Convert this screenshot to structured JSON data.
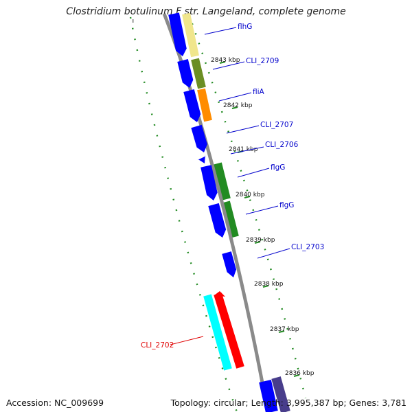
{
  "title": "Clostridium botulinum F str. Langeland, complete genome",
  "footer": {
    "accession": "Accession: NC_009699",
    "summary": "Topology: circular; Length: 3,995,387 bp; Genes: 3,781"
  },
  "colors": {
    "backbone": "#8a8a8a",
    "forward_gene": "#0000ff",
    "tick": "#228b22",
    "label_blue": "#0000cc",
    "label_red": "#e00000"
  },
  "ticks": [
    {
      "label": "2843 kbp"
    },
    {
      "label": "2842 kbp"
    },
    {
      "label": "2841 kbp"
    },
    {
      "label": "2840 kbp"
    },
    {
      "label": "2839 kbp"
    },
    {
      "label": "2838 kbp"
    },
    {
      "label": "2837 kbp"
    },
    {
      "label": "2836 kbp"
    }
  ],
  "gene_labels": [
    {
      "text": "flhG",
      "color": "#0000cc"
    },
    {
      "text": "CLI_2709",
      "color": "#0000cc"
    },
    {
      "text": "fliA",
      "color": "#0000cc"
    },
    {
      "text": "CLI_2707",
      "color": "#0000cc"
    },
    {
      "text": "CLI_2706",
      "color": "#0000cc"
    },
    {
      "text": "flgG",
      "color": "#0000cc"
    },
    {
      "text": "flgG",
      "color": "#0000cc"
    },
    {
      "text": "CLI_2703",
      "color": "#0000cc"
    },
    {
      "text": "CLI_2702",
      "color": "#e00000"
    }
  ],
  "cog_colors": [
    "#f0e68c",
    "#6b8e23",
    "#ff8c00",
    "#228b22",
    "#228b22",
    "#00ffff",
    "#ff0000",
    "#483d8b"
  ]
}
